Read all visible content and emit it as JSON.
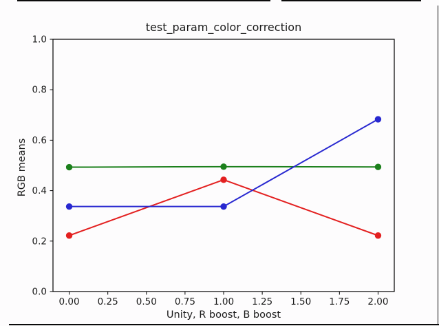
{
  "chart_data": {
    "type": "line",
    "title": "test_param_color_correction",
    "xlabel": "Unity, R boost, B boost",
    "ylabel": "RGB means",
    "x": [
      0,
      1,
      2
    ],
    "series": [
      {
        "name": "red",
        "color": "#e32020",
        "values": [
          0.222,
          0.443,
          0.222
        ]
      },
      {
        "name": "green",
        "color": "#1c801c",
        "values": [
          0.493,
          0.495,
          0.494
        ]
      },
      {
        "name": "blue",
        "color": "#2828d0",
        "values": [
          0.337,
          0.337,
          0.683
        ]
      }
    ],
    "xlim": [
      -0.105,
      2.105
    ],
    "ylim": [
      0,
      1
    ],
    "x_tick_values": [
      0,
      0.25,
      0.5,
      0.75,
      1,
      1.25,
      1.5,
      1.75,
      2
    ],
    "x_tick_labels": [
      "0.00",
      "0.25",
      "0.50",
      "0.75",
      "1.00",
      "1.25",
      "1.50",
      "1.75",
      "2.00"
    ],
    "y_tick_values": [
      0,
      0.2,
      0.4,
      0.6,
      0.8,
      1.0
    ],
    "y_tick_labels": [
      "0.0",
      "0.2",
      "0.4",
      "0.6",
      "0.8",
      "1.0"
    ],
    "grid": false,
    "legend": "none",
    "marker": "o",
    "line_width": 2,
    "axes_edge_color": "#000000",
    "text_color": "#1a1a1a",
    "background_color": "#fdfcfd"
  }
}
